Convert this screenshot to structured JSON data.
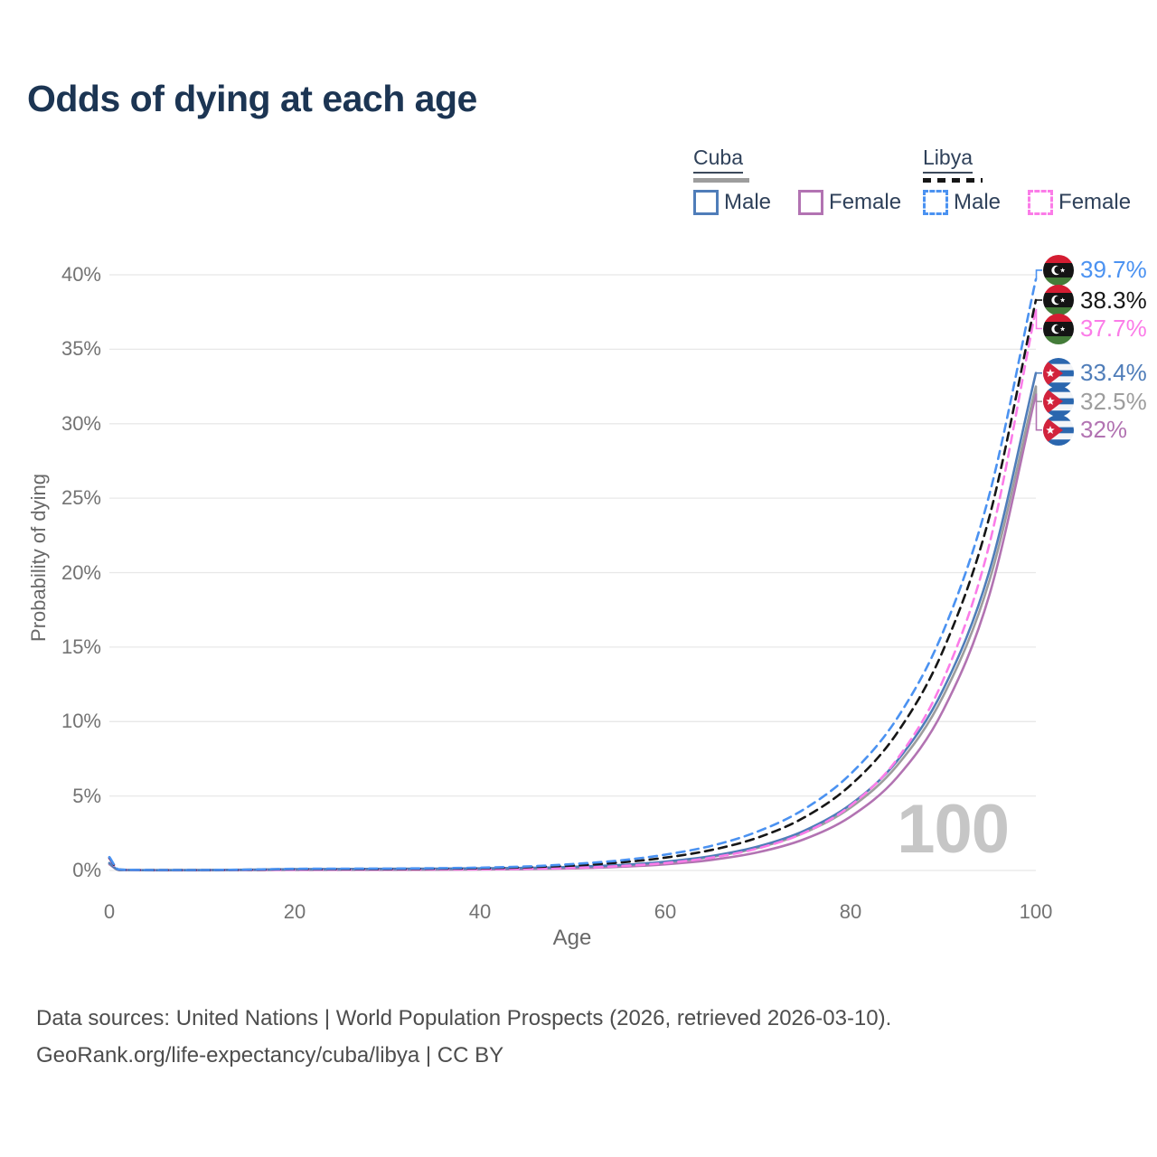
{
  "title": "Odds of dying at each age",
  "watermark": "100",
  "colors": {
    "title": "#1c3553",
    "legend_text": "#2f415a",
    "tick": "#737373",
    "axis_title": "#686868",
    "grid": "#e8e8e8",
    "watermark": "#c6c6c6",
    "footer": "#4d4d4d"
  },
  "legend": {
    "groups": [
      {
        "country": "Cuba",
        "line_style": "solid",
        "line_color": "#9d9d9d",
        "items": [
          {
            "label": "Male",
            "color": "#4f7db9"
          },
          {
            "label": "Female",
            "color": "#b273b2"
          }
        ]
      },
      {
        "country": "Libya",
        "line_style": "dashed",
        "line_color": "#161616",
        "items": [
          {
            "label": "Male",
            "color": "#4b92f1"
          },
          {
            "label": "Female",
            "color": "#fb7ce8"
          }
        ]
      }
    ]
  },
  "chart_data": {
    "type": "line",
    "title": "Odds of dying at each age",
    "xlabel": "Age",
    "ylabel": "Probability of dying",
    "x_ticks": [
      0,
      20,
      40,
      60,
      80,
      100
    ],
    "y_ticks": [
      "0%",
      "5%",
      "10%",
      "15%",
      "20%",
      "25%",
      "30%",
      "35%",
      "40%"
    ],
    "xlim": [
      0,
      100
    ],
    "ylim": [
      0,
      40
    ],
    "grid": true,
    "legend_position": "top-right",
    "hovered_age": 100,
    "ages": [
      0,
      1,
      2,
      5,
      10,
      15,
      20,
      25,
      30,
      35,
      40,
      45,
      50,
      55,
      60,
      65,
      70,
      75,
      80,
      85,
      90,
      95,
      100
    ],
    "series": [
      {
        "id": "cuba-female",
        "country": "Cuba",
        "sex": "female",
        "color": "#b273b2",
        "dashed": false,
        "end_label": "32%",
        "end_value": 32.0,
        "values": [
          0.42,
          0.035,
          0.025,
          0.015,
          0.015,
          0.025,
          0.035,
          0.04,
          0.045,
          0.05,
          0.06,
          0.09,
          0.14,
          0.24,
          0.41,
          0.71,
          1.22,
          2.1,
          3.62,
          6.24,
          10.76,
          18.55,
          32.0
        ]
      },
      {
        "id": "cuba-all",
        "country": "Cuba",
        "sex": "all",
        "color": "#9d9d9d",
        "dashed": false,
        "end_label": "32.5%",
        "end_value": 32.5,
        "values": [
          0.47,
          0.038,
          0.028,
          0.018,
          0.02,
          0.04,
          0.07,
          0.08,
          0.09,
          0.1,
          0.12,
          0.15,
          0.21,
          0.33,
          0.55,
          0.91,
          1.52,
          2.53,
          4.22,
          7.03,
          11.71,
          19.5,
          32.5
        ]
      },
      {
        "id": "cuba-male",
        "country": "Cuba",
        "sex": "male",
        "color": "#4f7db9",
        "dashed": false,
        "end_label": "33.4%",
        "end_value": 33.4,
        "values": [
          0.5,
          0.04,
          0.03,
          0.02,
          0.025,
          0.05,
          0.09,
          0.1,
          0.11,
          0.12,
          0.14,
          0.17,
          0.24,
          0.36,
          0.59,
          0.97,
          1.61,
          2.67,
          4.43,
          7.34,
          12.16,
          20.15,
          33.4
        ]
      },
      {
        "id": "libya-female",
        "country": "Libya",
        "sex": "female",
        "color": "#fb7ce8",
        "dashed": true,
        "end_label": "37.7%",
        "end_value": 37.7,
        "values": [
          0.8,
          0.06,
          0.04,
          0.02,
          0.02,
          0.035,
          0.05,
          0.055,
          0.06,
          0.07,
          0.08,
          0.11,
          0.17,
          0.29,
          0.5,
          0.86,
          1.48,
          2.53,
          4.35,
          7.46,
          12.8,
          21.96,
          37.7
        ]
      },
      {
        "id": "libya-all",
        "country": "Libya",
        "sex": "all",
        "color": "#161616",
        "dashed": true,
        "end_label": "38.3%",
        "end_value": 38.3,
        "values": [
          0.85,
          0.065,
          0.045,
          0.025,
          0.025,
          0.05,
          0.09,
          0.09,
          0.1,
          0.12,
          0.15,
          0.22,
          0.33,
          0.53,
          0.86,
          1.38,
          2.21,
          3.56,
          5.73,
          9.22,
          14.8,
          23.8,
          38.3
        ]
      },
      {
        "id": "libya-male",
        "country": "Libya",
        "sex": "male",
        "color": "#4b92f1",
        "dashed": true,
        "end_label": "39.7%",
        "end_value": 39.7,
        "values": [
          0.9,
          0.07,
          0.05,
          0.03,
          0.03,
          0.06,
          0.11,
          0.12,
          0.13,
          0.15,
          0.19,
          0.27,
          0.43,
          0.67,
          1.06,
          1.66,
          2.62,
          4.12,
          6.48,
          10.2,
          16.05,
          25.3,
          39.7
        ]
      }
    ]
  },
  "footer": {
    "line1": "Data sources: United Nations | World Population Prospects (2026, retrieved 2026-03-10).",
    "line2": "GeoRank.org/life-expectancy/cuba/libya | CC BY"
  }
}
